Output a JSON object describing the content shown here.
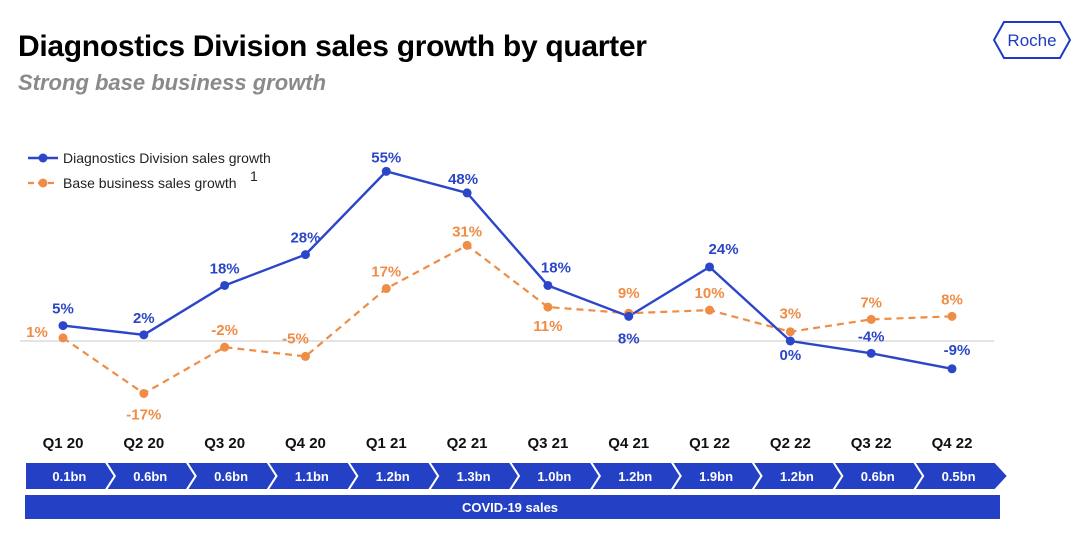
{
  "page": {
    "title": "Diagnostics Division sales growth by quarter",
    "subtitle": "Strong base business growth",
    "logo_text": "Roche"
  },
  "colors": {
    "diagnostics": "#2b46c8",
    "base": "#ef8c46",
    "covid_bar": "#2440c4",
    "baseline": "#c8c8c8"
  },
  "chart_data": {
    "type": "line",
    "categories": [
      "Q1 20",
      "Q2 20",
      "Q3 20",
      "Q4 20",
      "Q1 21",
      "Q2 21",
      "Q3 21",
      "Q4 21",
      "Q1 22",
      "Q2 22",
      "Q3 22",
      "Q4 22"
    ],
    "ylim": [
      -20,
      60
    ],
    "series": [
      {
        "name": "Diagnostics Division sales growth",
        "values": [
          5,
          2,
          18,
          28,
          55,
          48,
          18,
          8,
          24,
          0,
          -4,
          -9
        ],
        "labels": [
          "5%",
          "2%",
          "18%",
          "28%",
          "55%",
          "48%",
          "18%",
          "8%",
          "24%",
          "0%",
          "-4%",
          "-9%"
        ],
        "style": "solid"
      },
      {
        "name": "Base business sales growth",
        "name_superscript": "1",
        "values": [
          1,
          -17,
          -2,
          -5,
          17,
          31,
          11,
          9,
          10,
          3,
          7,
          8
        ],
        "labels": [
          "1%",
          "-17%",
          "-2%",
          "-5%",
          "17%",
          "31%",
          "11%",
          "9%",
          "10%",
          "3%",
          "7%",
          "8%"
        ],
        "style": "dashed"
      }
    ],
    "covid_sales": {
      "label": "COVID-19 sales",
      "values": [
        "0.1bn",
        "0.6bn",
        "0.6bn",
        "1.1bn",
        "1.2bn",
        "1.3bn",
        "1.0bn",
        "1.2bn",
        "1.9bn",
        "1.2bn",
        "0.6bn",
        "0.5bn"
      ]
    },
    "legend_position": "top-left",
    "grid": false
  }
}
